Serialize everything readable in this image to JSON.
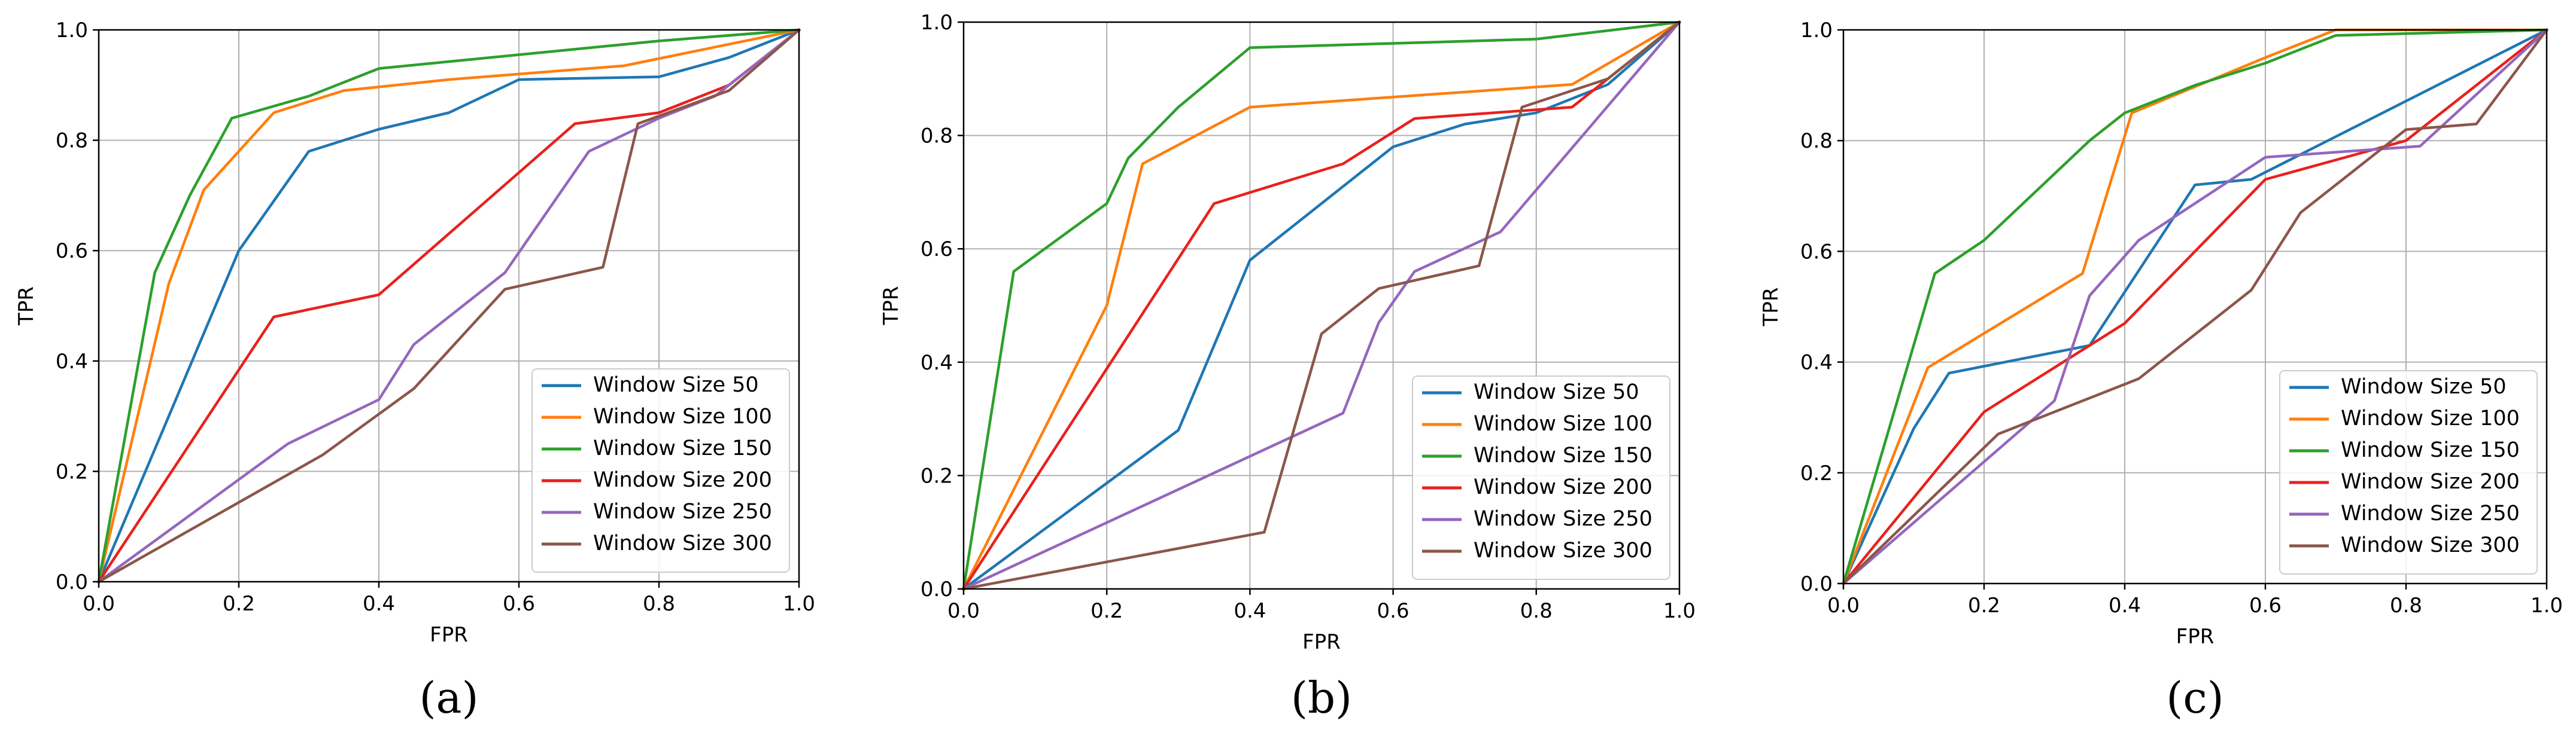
{
  "chart_data": [
    {
      "type": "line",
      "caption": "(a)",
      "xlabel": "FPR",
      "ylabel": "TPR",
      "xlim": [
        0,
        1
      ],
      "ylim": [
        0,
        1
      ],
      "grid": true,
      "legend_position": "lower-right",
      "xticks": [
        "0.0",
        "0.2",
        "0.4",
        "0.6",
        "0.8",
        "1.0"
      ],
      "yticks": [
        "0.0",
        "0.2",
        "0.4",
        "0.6",
        "0.8",
        "1.0"
      ],
      "series": [
        {
          "name": "Window Size 50",
          "color": "#1f77b4",
          "x": [
            0,
            0.2,
            0.3,
            0.4,
            0.5,
            0.6,
            0.8,
            0.9,
            1.0
          ],
          "y": [
            0,
            0.6,
            0.78,
            0.82,
            0.85,
            0.91,
            0.915,
            0.95,
            1.0
          ]
        },
        {
          "name": "Window Size 100",
          "color": "#ff7f0e",
          "x": [
            0,
            0.1,
            0.15,
            0.25,
            0.35,
            0.5,
            0.75,
            1.0
          ],
          "y": [
            0,
            0.54,
            0.71,
            0.85,
            0.89,
            0.91,
            0.935,
            1.0
          ]
        },
        {
          "name": "Window Size 150",
          "color": "#2ca02c",
          "x": [
            0,
            0.08,
            0.13,
            0.19,
            0.3,
            0.4,
            0.8,
            1.0
          ],
          "y": [
            0,
            0.56,
            0.7,
            0.84,
            0.88,
            0.93,
            0.98,
            1.0
          ]
        },
        {
          "name": "Window Size 200",
          "color": "#e8211d",
          "x": [
            0,
            0.25,
            0.4,
            0.68,
            0.8,
            0.9,
            1.0
          ],
          "y": [
            0,
            0.48,
            0.52,
            0.83,
            0.85,
            0.9,
            1.0
          ]
        },
        {
          "name": "Window Size 250",
          "color": "#9467bd",
          "x": [
            0,
            0.27,
            0.4,
            0.45,
            0.58,
            0.7,
            0.8,
            0.88,
            1.0
          ],
          "y": [
            0,
            0.25,
            0.33,
            0.43,
            0.56,
            0.78,
            0.84,
            0.88,
            1.0
          ]
        },
        {
          "name": "Window Size 300",
          "color": "#8c564b",
          "x": [
            0,
            0.32,
            0.45,
            0.58,
            0.72,
            0.77,
            0.9,
            1.0
          ],
          "y": [
            0,
            0.23,
            0.35,
            0.53,
            0.57,
            0.83,
            0.89,
            1.0
          ]
        }
      ]
    },
    {
      "type": "line",
      "caption": "(b)",
      "xlabel": "FPR",
      "ylabel": "TPR",
      "xlim": [
        0,
        1
      ],
      "ylim": [
        0,
        1
      ],
      "grid": true,
      "legend_position": "lower-right",
      "xticks": [
        "0.0",
        "0.2",
        "0.4",
        "0.6",
        "0.8",
        "1.0"
      ],
      "yticks": [
        "0.0",
        "0.2",
        "0.4",
        "0.6",
        "0.8",
        "1.0"
      ],
      "series": [
        {
          "name": "Window Size 50",
          "color": "#1f77b4",
          "x": [
            0,
            0.3,
            0.4,
            0.6,
            0.7,
            0.8,
            0.9,
            1.0
          ],
          "y": [
            0,
            0.28,
            0.58,
            0.78,
            0.82,
            0.84,
            0.89,
            1.0
          ]
        },
        {
          "name": "Window Size 100",
          "color": "#ff7f0e",
          "x": [
            0,
            0.2,
            0.25,
            0.4,
            0.85,
            1.0
          ],
          "y": [
            0,
            0.5,
            0.75,
            0.85,
            0.89,
            1.0
          ]
        },
        {
          "name": "Window Size 150",
          "color": "#2ca02c",
          "x": [
            0,
            0.07,
            0.2,
            0.23,
            0.3,
            0.4,
            0.8,
            1.0
          ],
          "y": [
            0,
            0.56,
            0.68,
            0.76,
            0.85,
            0.955,
            0.97,
            1.0
          ]
        },
        {
          "name": "Window Size 200",
          "color": "#e8211d",
          "x": [
            0,
            0.35,
            0.53,
            0.63,
            0.85,
            1.0
          ],
          "y": [
            0,
            0.68,
            0.75,
            0.83,
            0.85,
            1.0
          ]
        },
        {
          "name": "Window Size 250",
          "color": "#9467bd",
          "x": [
            0,
            0.53,
            0.58,
            0.63,
            0.75,
            1.0
          ],
          "y": [
            0,
            0.31,
            0.47,
            0.56,
            0.63,
            1.0
          ]
        },
        {
          "name": "Window Size 300",
          "color": "#8c564b",
          "x": [
            0,
            0.42,
            0.5,
            0.58,
            0.72,
            0.78,
            0.9,
            1.0
          ],
          "y": [
            0,
            0.1,
            0.45,
            0.53,
            0.57,
            0.85,
            0.9,
            1.0
          ]
        }
      ]
    },
    {
      "type": "line",
      "caption": "(c)",
      "xlabel": "FPR",
      "ylabel": "TPR",
      "xlim": [
        0,
        1
      ],
      "ylim": [
        0,
        1
      ],
      "grid": true,
      "legend_position": "lower-right",
      "xticks": [
        "0.0",
        "0.2",
        "0.4",
        "0.6",
        "0.8",
        "1.0"
      ],
      "yticks": [
        "0.0",
        "0.2",
        "0.4",
        "0.6",
        "0.8",
        "1.0"
      ],
      "series": [
        {
          "name": "Window Size 50",
          "color": "#1f77b4",
          "x": [
            0,
            0.1,
            0.15,
            0.35,
            0.5,
            0.58,
            1.0
          ],
          "y": [
            0,
            0.28,
            0.38,
            0.43,
            0.72,
            0.73,
            1.0
          ]
        },
        {
          "name": "Window Size 100",
          "color": "#ff7f0e",
          "x": [
            0,
            0.12,
            0.34,
            0.41,
            0.6,
            0.7,
            1.0
          ],
          "y": [
            0,
            0.39,
            0.56,
            0.85,
            0.95,
            1.0,
            1.0
          ]
        },
        {
          "name": "Window Size 150",
          "color": "#2ca02c",
          "x": [
            0,
            0.13,
            0.2,
            0.35,
            0.4,
            0.5,
            0.6,
            0.7,
            1.0
          ],
          "y": [
            0,
            0.56,
            0.62,
            0.8,
            0.85,
            0.9,
            0.94,
            0.99,
            1.0
          ]
        },
        {
          "name": "Window Size 200",
          "color": "#e8211d",
          "x": [
            0,
            0.2,
            0.4,
            0.6,
            0.8,
            1.0
          ],
          "y": [
            0,
            0.31,
            0.47,
            0.73,
            0.8,
            1.0
          ]
        },
        {
          "name": "Window Size 250",
          "color": "#9467bd",
          "x": [
            0,
            0.3,
            0.35,
            0.42,
            0.6,
            0.82,
            1.0
          ],
          "y": [
            0,
            0.33,
            0.52,
            0.62,
            0.77,
            0.79,
            1.0
          ]
        },
        {
          "name": "Window Size 300",
          "color": "#8c564b",
          "x": [
            0,
            0.22,
            0.42,
            0.58,
            0.65,
            0.8,
            0.9,
            1.0
          ],
          "y": [
            0,
            0.27,
            0.37,
            0.53,
            0.67,
            0.82,
            0.83,
            1.0
          ]
        }
      ]
    }
  ]
}
